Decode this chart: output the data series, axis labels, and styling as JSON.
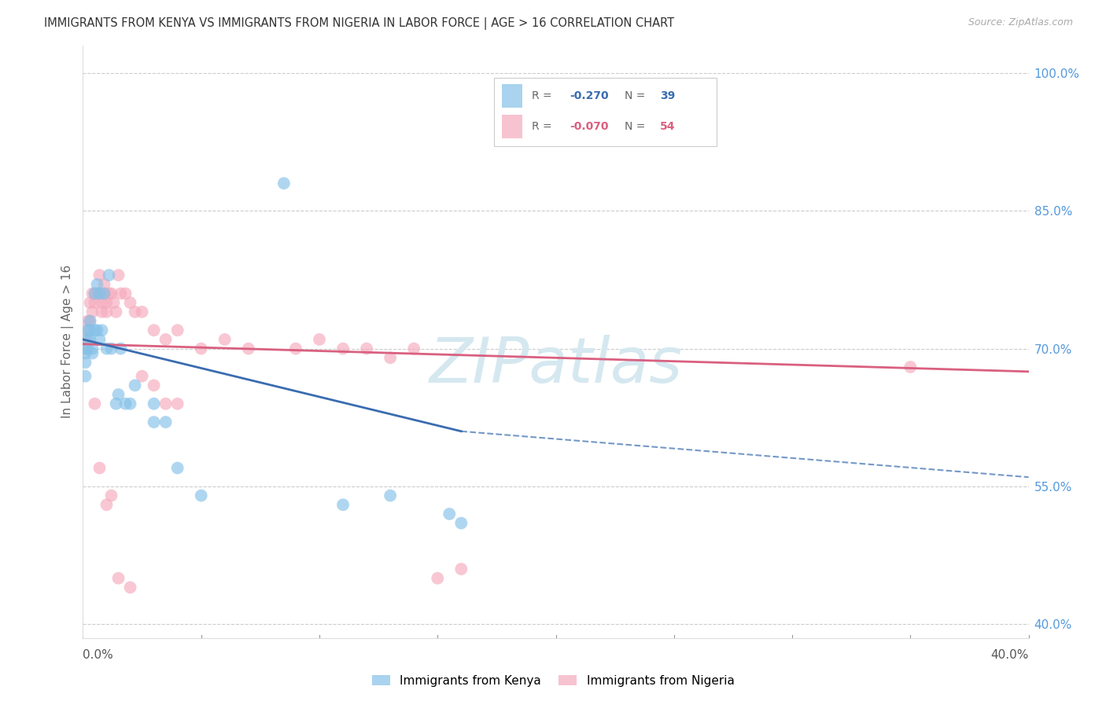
{
  "title": "IMMIGRANTS FROM KENYA VS IMMIGRANTS FROM NIGERIA IN LABOR FORCE | AGE > 16 CORRELATION CHART",
  "source": "Source: ZipAtlas.com",
  "ylabel": "In Labor Force | Age > 16",
  "ylabel_right_ticks": [
    "100.0%",
    "85.0%",
    "70.0%",
    "55.0%",
    "40.0%"
  ],
  "ylabel_right_values": [
    1.0,
    0.85,
    0.7,
    0.55,
    0.4
  ],
  "xlim": [
    0.0,
    0.4
  ],
  "ylim": [
    0.385,
    1.03
  ],
  "kenya_color": "#85C1E8",
  "nigeria_color": "#F5AABC",
  "kenya_line_color": "#3A6CB0",
  "nigeria_line_color": "#D96080",
  "watermark": "ZIPatlas",
  "watermark_color": "#D5E8F0",
  "kenya_x": [
    0.001,
    0.001,
    0.001,
    0.001,
    0.002,
    0.002,
    0.002,
    0.003,
    0.003,
    0.003,
    0.004,
    0.004,
    0.005,
    0.005,
    0.006,
    0.006,
    0.007,
    0.007,
    0.008,
    0.009,
    0.01,
    0.011,
    0.012,
    0.014,
    0.015,
    0.016,
    0.018,
    0.02,
    0.022,
    0.03,
    0.03,
    0.035,
    0.04,
    0.05,
    0.085,
    0.11,
    0.13,
    0.155,
    0.16
  ],
  "kenya_y": [
    0.7,
    0.695,
    0.685,
    0.67,
    0.72,
    0.71,
    0.7,
    0.73,
    0.72,
    0.71,
    0.7,
    0.695,
    0.76,
    0.72,
    0.77,
    0.72,
    0.76,
    0.71,
    0.72,
    0.76,
    0.7,
    0.78,
    0.7,
    0.64,
    0.65,
    0.7,
    0.64,
    0.64,
    0.66,
    0.64,
    0.62,
    0.62,
    0.57,
    0.54,
    0.88,
    0.53,
    0.54,
    0.52,
    0.51
  ],
  "nigeria_x": [
    0.001,
    0.001,
    0.002,
    0.002,
    0.003,
    0.003,
    0.004,
    0.004,
    0.005,
    0.005,
    0.006,
    0.007,
    0.007,
    0.008,
    0.008,
    0.009,
    0.009,
    0.01,
    0.01,
    0.011,
    0.012,
    0.013,
    0.014,
    0.015,
    0.016,
    0.018,
    0.02,
    0.022,
    0.025,
    0.03,
    0.035,
    0.04,
    0.05,
    0.06,
    0.07,
    0.09,
    0.1,
    0.11,
    0.12,
    0.13,
    0.14,
    0.15,
    0.16,
    0.005,
    0.007,
    0.01,
    0.012,
    0.015,
    0.02,
    0.025,
    0.03,
    0.035,
    0.04,
    0.35
  ],
  "nigeria_y": [
    0.71,
    0.7,
    0.73,
    0.72,
    0.75,
    0.73,
    0.76,
    0.74,
    0.76,
    0.75,
    0.76,
    0.78,
    0.76,
    0.75,
    0.74,
    0.77,
    0.76,
    0.75,
    0.74,
    0.76,
    0.76,
    0.75,
    0.74,
    0.78,
    0.76,
    0.76,
    0.75,
    0.74,
    0.74,
    0.72,
    0.71,
    0.72,
    0.7,
    0.71,
    0.7,
    0.7,
    0.71,
    0.7,
    0.7,
    0.69,
    0.7,
    0.45,
    0.46,
    0.64,
    0.57,
    0.53,
    0.54,
    0.45,
    0.44,
    0.67,
    0.66,
    0.64,
    0.64,
    0.68
  ],
  "kenya_line_x0": 0.0,
  "kenya_line_y0": 0.71,
  "kenya_line_x1_solid": 0.16,
  "kenya_line_y1_solid": 0.61,
  "kenya_line_x1_dashed": 0.4,
  "kenya_line_y1_dashed": 0.56,
  "nigeria_line_x0": 0.0,
  "nigeria_line_y0": 0.705,
  "nigeria_line_x1": 0.4,
  "nigeria_line_y1": 0.675
}
